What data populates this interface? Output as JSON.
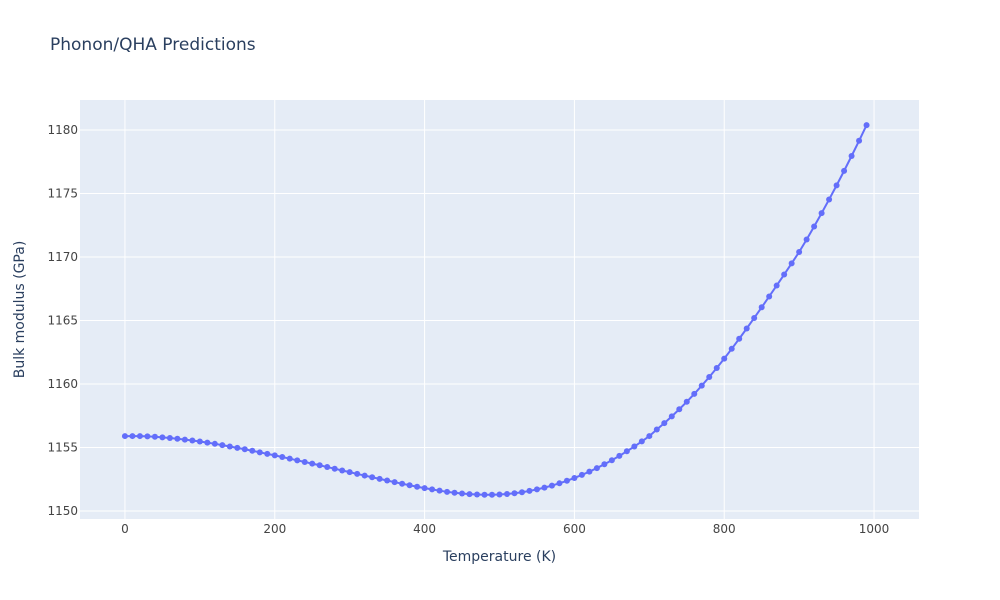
{
  "chart_data": {
    "type": "line",
    "title": "Phonon/QHA Predictions",
    "x_label": "Temperature (K)",
    "y_label": "Bulk modulus (GPa)",
    "x": [
      0,
      10,
      20,
      30,
      40,
      50,
      60,
      70,
      80,
      90,
      100,
      110,
      120,
      130,
      140,
      150,
      160,
      170,
      180,
      190,
      200,
      210,
      220,
      230,
      240,
      250,
      260,
      270,
      280,
      290,
      300,
      310,
      320,
      330,
      340,
      350,
      360,
      370,
      380,
      390,
      400,
      410,
      420,
      430,
      440,
      450,
      460,
      470,
      480,
      490,
      500,
      510,
      520,
      530,
      540,
      550,
      560,
      570,
      580,
      590,
      600,
      610,
      620,
      630,
      640,
      650,
      660,
      670,
      680,
      690,
      700,
      710,
      720,
      730,
      740,
      750,
      760,
      770,
      780,
      790,
      800,
      810,
      820,
      830,
      840,
      850,
      860,
      870,
      880,
      890,
      900,
      910,
      920,
      930,
      940,
      950,
      960,
      970,
      980,
      990
    ],
    "series": [
      {
        "name": "Bulk modulus",
        "color": "#636efa",
        "values": [
          1155.9,
          1155.9,
          1155.9,
          1155.88,
          1155.85,
          1155.8,
          1155.75,
          1155.69,
          1155.62,
          1155.55,
          1155.47,
          1155.38,
          1155.29,
          1155.19,
          1155.08,
          1154.97,
          1154.86,
          1154.74,
          1154.62,
          1154.5,
          1154.38,
          1154.25,
          1154.12,
          1153.99,
          1153.86,
          1153.73,
          1153.6,
          1153.46,
          1153.33,
          1153.19,
          1153.06,
          1152.92,
          1152.79,
          1152.66,
          1152.53,
          1152.4,
          1152.27,
          1152.15,
          1152.03,
          1151.91,
          1151.8,
          1151.7,
          1151.6,
          1151.51,
          1151.44,
          1151.38,
          1151.33,
          1151.3,
          1151.28,
          1151.28,
          1151.3,
          1151.34,
          1151.4,
          1151.48,
          1151.58,
          1151.7,
          1151.84,
          1152.0,
          1152.18,
          1152.38,
          1152.6,
          1152.84,
          1153.1,
          1153.38,
          1153.68,
          1154.0,
          1154.34,
          1154.7,
          1155.08,
          1155.48,
          1155.9,
          1156.42,
          1156.92,
          1157.45,
          1158.01,
          1158.6,
          1159.22,
          1159.87,
          1160.55,
          1161.26,
          1162.0,
          1162.77,
          1163.56,
          1164.37,
          1165.2,
          1166.04,
          1166.89,
          1167.75,
          1168.62,
          1169.5,
          1170.39,
          1171.38,
          1172.4,
          1173.45,
          1174.53,
          1175.64,
          1176.78,
          1177.95,
          1179.15,
          1180.38
        ]
      }
    ],
    "xlim": [
      -60,
      1060
    ],
    "xticks": [
      0,
      200,
      400,
      600,
      800,
      1000
    ],
    "ylim": [
      1149.37,
      1182.36
    ],
    "yticks": [
      1150,
      1155,
      1160,
      1165,
      1170,
      1175,
      1180
    ],
    "grid": true
  }
}
